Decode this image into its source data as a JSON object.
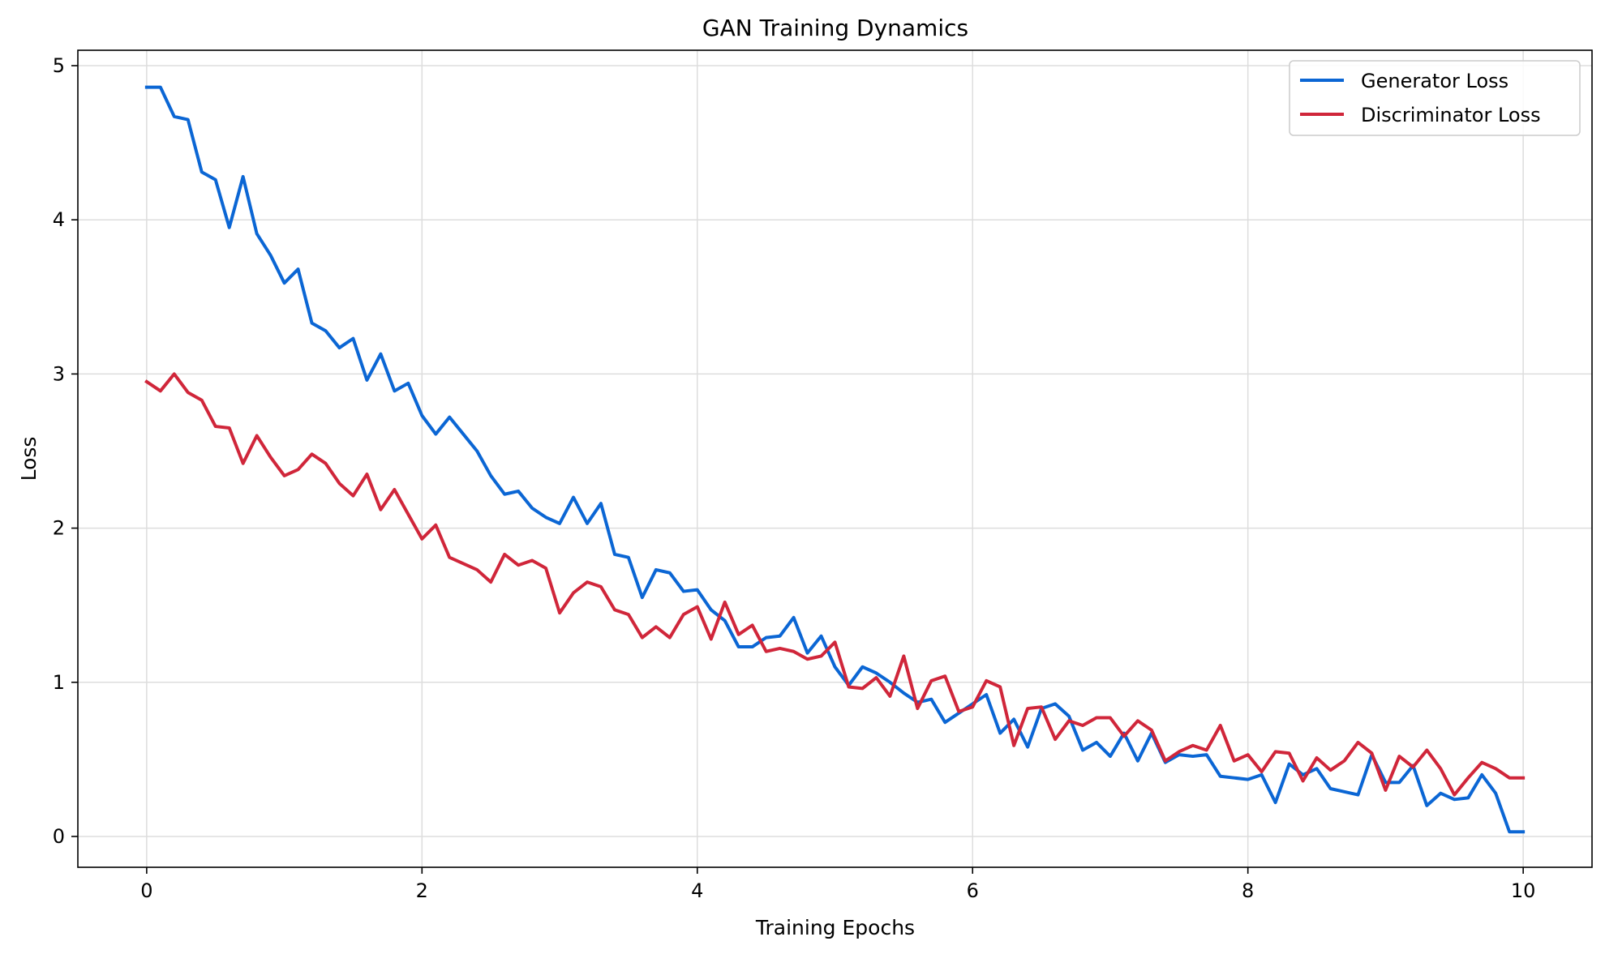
{
  "chart_data": {
    "type": "line",
    "title": "GAN Training Dynamics",
    "xlabel": "Training Epochs",
    "ylabel": "Loss",
    "xlim": [
      -0.5,
      10.5
    ],
    "ylim": [
      -0.2,
      5.1
    ],
    "xticks": [
      0,
      2,
      4,
      6,
      8,
      10
    ],
    "yticks": [
      0,
      1,
      2,
      3,
      4,
      5
    ],
    "grid": true,
    "legend_position": "top-right",
    "x": [
      0.0,
      0.1,
      0.2,
      0.3,
      0.4,
      0.5,
      0.6,
      0.7,
      0.8,
      0.9,
      1.0,
      1.1,
      1.2,
      1.3,
      1.4,
      1.5,
      1.6,
      1.7,
      1.8,
      1.9,
      2.0,
      2.1,
      2.2,
      2.3,
      2.4,
      2.5,
      2.6,
      2.7,
      2.8,
      2.9,
      3.0,
      3.1,
      3.2,
      3.3,
      3.4,
      3.5,
      3.6,
      3.7,
      3.8,
      3.9,
      4.0,
      4.1,
      4.2,
      4.3,
      4.4,
      4.5,
      4.6,
      4.7,
      4.8,
      4.9,
      5.0,
      5.1,
      5.2,
      5.3,
      5.4,
      5.5,
      5.6,
      5.7,
      5.8,
      5.9,
      6.0,
      6.1,
      6.2,
      6.3,
      6.4,
      6.5,
      6.6,
      6.7,
      6.8,
      6.9,
      7.0,
      7.1,
      7.2,
      7.3,
      7.4,
      7.5,
      7.6,
      7.7,
      7.8,
      7.9,
      8.0,
      8.1,
      8.2,
      8.3,
      8.4,
      8.5,
      8.6,
      8.7,
      8.8,
      8.9,
      9.0,
      9.1,
      9.2,
      9.3,
      9.4,
      9.5,
      9.6,
      9.7,
      9.8,
      9.9,
      10.0
    ],
    "series": [
      {
        "name": "Generator Loss",
        "color": "#0b66d4",
        "values": [
          4.86,
          4.86,
          4.67,
          4.65,
          4.31,
          4.26,
          3.95,
          4.28,
          3.91,
          3.77,
          3.59,
          3.68,
          3.33,
          3.28,
          3.17,
          3.23,
          2.96,
          3.13,
          2.89,
          2.94,
          2.73,
          2.61,
          2.72,
          2.61,
          2.5,
          2.34,
          2.22,
          2.24,
          2.13,
          2.07,
          2.03,
          2.2,
          2.03,
          2.16,
          1.83,
          1.81,
          1.55,
          1.73,
          1.71,
          1.59,
          1.6,
          1.47,
          1.4,
          1.23,
          1.23,
          1.29,
          1.3,
          1.42,
          1.19,
          1.3,
          1.1,
          0.98,
          1.1,
          1.06,
          1.0,
          0.93,
          0.87,
          0.89,
          0.74,
          0.8,
          0.86,
          0.92,
          0.67,
          0.76,
          0.58,
          0.83,
          0.86,
          0.78,
          0.56,
          0.61,
          0.52,
          0.67,
          0.49,
          0.67,
          0.48,
          0.53,
          0.52,
          0.53,
          0.39,
          0.38,
          0.37,
          0.4,
          0.22,
          0.47,
          0.4,
          0.44,
          0.31,
          0.29,
          0.27,
          0.53,
          0.35,
          0.35,
          0.46,
          0.2,
          0.28,
          0.24,
          0.25,
          0.4,
          0.28,
          0.03,
          0.03
        ]
      },
      {
        "name": "Discriminator Loss",
        "color": "#d0263a",
        "values": [
          2.95,
          2.89,
          3.0,
          2.88,
          2.83,
          2.66,
          2.65,
          2.42,
          2.6,
          2.46,
          2.34,
          2.38,
          2.48,
          2.42,
          2.29,
          2.21,
          2.35,
          2.12,
          2.25,
          2.09,
          1.93,
          2.02,
          1.81,
          1.77,
          1.73,
          1.65,
          1.83,
          1.76,
          1.79,
          1.74,
          1.45,
          1.58,
          1.65,
          1.62,
          1.47,
          1.44,
          1.29,
          1.36,
          1.29,
          1.44,
          1.49,
          1.28,
          1.52,
          1.31,
          1.37,
          1.2,
          1.22,
          1.2,
          1.15,
          1.17,
          1.26,
          0.97,
          0.96,
          1.03,
          0.91,
          1.17,
          0.83,
          1.01,
          1.04,
          0.81,
          0.84,
          1.01,
          0.97,
          0.59,
          0.83,
          0.84,
          0.63,
          0.75,
          0.72,
          0.77,
          0.77,
          0.65,
          0.75,
          0.69,
          0.49,
          0.55,
          0.59,
          0.56,
          0.72,
          0.49,
          0.53,
          0.42,
          0.55,
          0.54,
          0.36,
          0.51,
          0.43,
          0.49,
          0.61,
          0.54,
          0.3,
          0.52,
          0.45,
          0.56,
          0.44,
          0.27,
          0.38,
          0.48,
          0.44,
          0.38,
          0.38
        ]
      }
    ]
  }
}
